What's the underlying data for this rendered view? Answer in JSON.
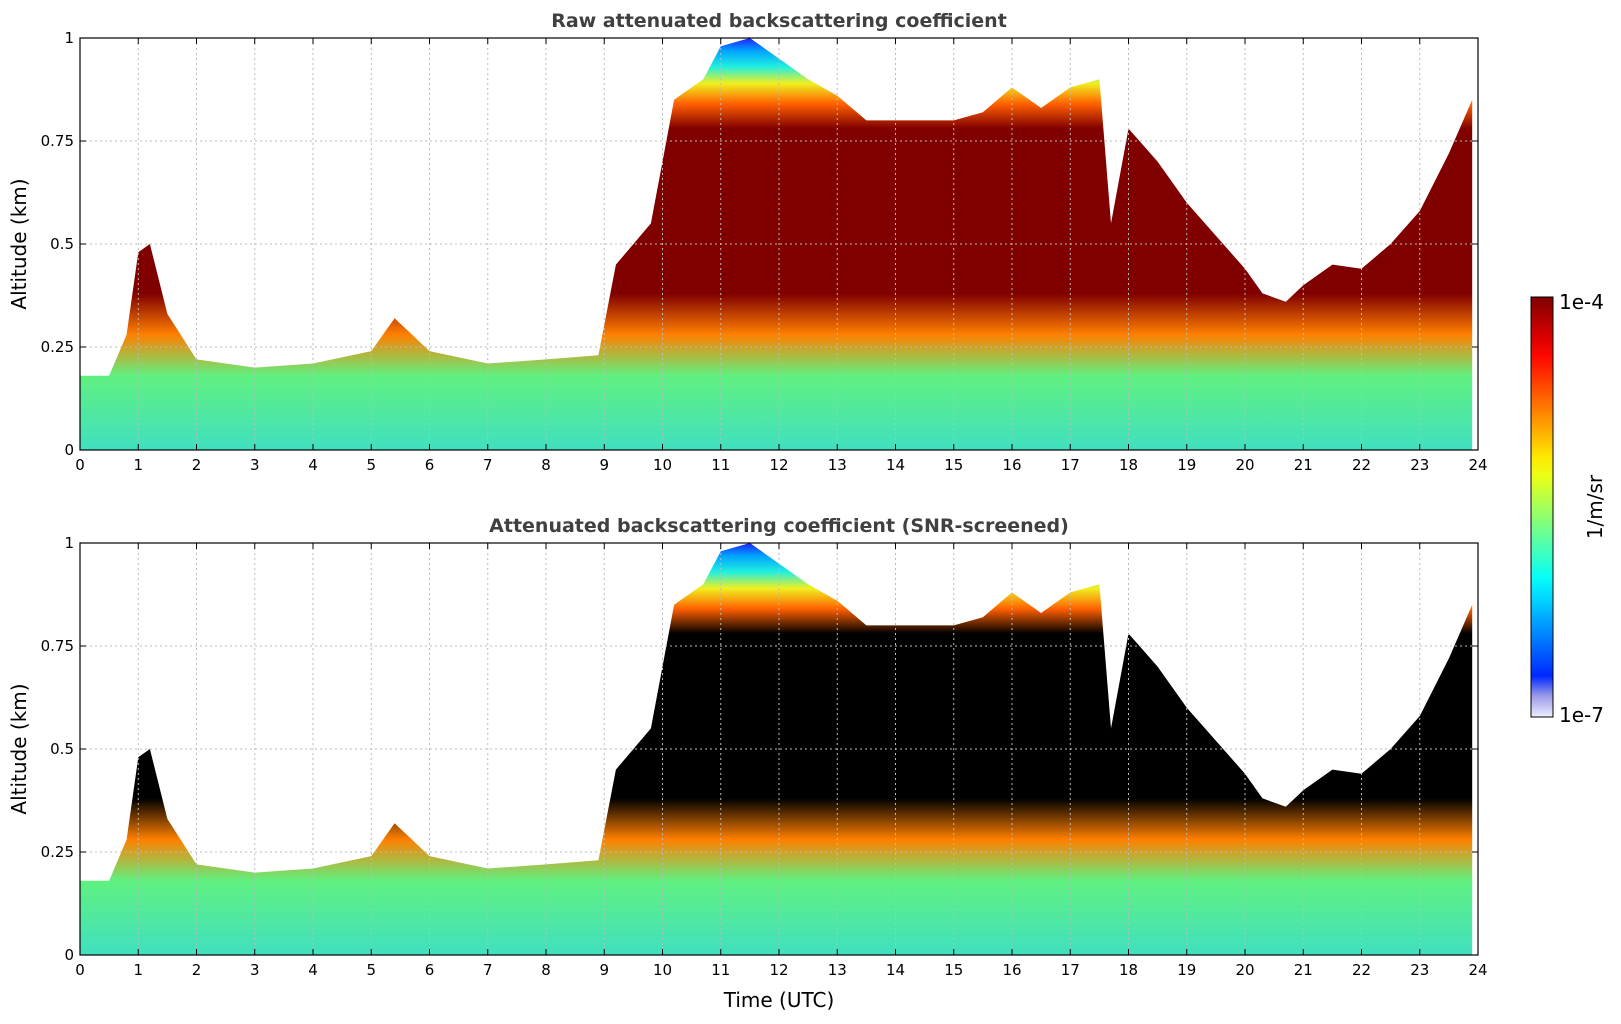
{
  "chart_data": [
    {
      "type": "heatmap",
      "title": "Raw attenuated backscattering coefficient",
      "xlabel": "",
      "ylabel": "Altitude (km)",
      "xlim": [
        0,
        24
      ],
      "ylim": [
        0,
        1
      ],
      "x_ticks": [
        "0",
        "1",
        "2",
        "3",
        "4",
        "5",
        "6",
        "7",
        "8",
        "9",
        "10",
        "11",
        "12",
        "13",
        "14",
        "15",
        "16",
        "17",
        "18",
        "19",
        "20",
        "21",
        "22",
        "23",
        "24"
      ],
      "y_ticks": [
        "0",
        "0.25",
        "0.5",
        "0.75",
        "1"
      ],
      "grid": true,
      "color_scale": "jet",
      "peak_color": "#800000",
      "layer_top_km": {
        "time": [
          0,
          0.5,
          0.8,
          1.0,
          1.2,
          1.5,
          2.0,
          3.0,
          4.0,
          5.0,
          5.4,
          5.7,
          6.0,
          7.0,
          8.0,
          8.9,
          9.2,
          9.8,
          10.2,
          10.7,
          11.0,
          11.5,
          12.0,
          12.5,
          13.0,
          13.5,
          14.0,
          14.5,
          15.0,
          15.5,
          16.0,
          16.5,
          17.0,
          17.5,
          17.7,
          18.0,
          18.5,
          19.0,
          19.5,
          20.0,
          20.3,
          20.7,
          21.0,
          21.5,
          22.0,
          22.5,
          23.0,
          23.5,
          23.9
        ],
        "altitude": [
          0.18,
          0.18,
          0.28,
          0.48,
          0.5,
          0.33,
          0.22,
          0.2,
          0.21,
          0.24,
          0.32,
          0.28,
          0.24,
          0.21,
          0.22,
          0.23,
          0.45,
          0.55,
          0.85,
          0.9,
          0.98,
          1.0,
          0.95,
          0.9,
          0.86,
          0.8,
          0.8,
          0.8,
          0.8,
          0.82,
          0.88,
          0.83,
          0.88,
          0.9,
          0.55,
          0.78,
          0.7,
          0.6,
          0.52,
          0.44,
          0.38,
          0.36,
          0.4,
          0.45,
          0.44,
          0.5,
          0.58,
          0.72,
          0.85
        ]
      },
      "colorbar": {
        "min": "1e-7",
        "max": "1e-4",
        "label": "1/m/sr"
      }
    },
    {
      "type": "heatmap",
      "title": "Attenuated backscattering coefficient (SNR-screened)",
      "xlabel": "Time (UTC)",
      "ylabel": "Altitude (km)",
      "xlim": [
        0,
        24
      ],
      "ylim": [
        0,
        1
      ],
      "x_ticks": [
        "0",
        "1",
        "2",
        "3",
        "4",
        "5",
        "6",
        "7",
        "8",
        "9",
        "10",
        "11",
        "12",
        "13",
        "14",
        "15",
        "16",
        "17",
        "18",
        "19",
        "20",
        "21",
        "22",
        "23",
        "24"
      ],
      "y_ticks": [
        "0",
        "0.25",
        "0.5",
        "0.75",
        "1"
      ],
      "grid": true,
      "color_scale": "jet",
      "peak_color": "#000000",
      "layer_top_km": {
        "time": [
          0,
          0.5,
          0.8,
          1.0,
          1.2,
          1.5,
          2.0,
          3.0,
          4.0,
          5.0,
          5.4,
          5.7,
          6.0,
          7.0,
          8.0,
          8.9,
          9.2,
          9.8,
          10.2,
          10.7,
          11.0,
          11.5,
          12.0,
          12.5,
          13.0,
          13.5,
          14.0,
          14.5,
          15.0,
          15.5,
          16.0,
          16.5,
          17.0,
          17.5,
          17.7,
          18.0,
          18.5,
          19.0,
          19.5,
          20.0,
          20.3,
          20.7,
          21.0,
          21.5,
          22.0,
          22.5,
          23.0,
          23.5,
          23.9
        ],
        "altitude": [
          0.18,
          0.18,
          0.28,
          0.48,
          0.5,
          0.33,
          0.22,
          0.2,
          0.21,
          0.24,
          0.32,
          0.28,
          0.24,
          0.21,
          0.22,
          0.23,
          0.45,
          0.55,
          0.85,
          0.9,
          0.98,
          1.0,
          0.95,
          0.9,
          0.86,
          0.8,
          0.8,
          0.8,
          0.8,
          0.82,
          0.88,
          0.83,
          0.88,
          0.9,
          0.55,
          0.78,
          0.7,
          0.6,
          0.52,
          0.44,
          0.38,
          0.36,
          0.4,
          0.45,
          0.44,
          0.5,
          0.58,
          0.72,
          0.85
        ]
      },
      "colorbar": {
        "min": "1e-7",
        "max": "1e-4",
        "label": "1/m/sr"
      }
    }
  ]
}
